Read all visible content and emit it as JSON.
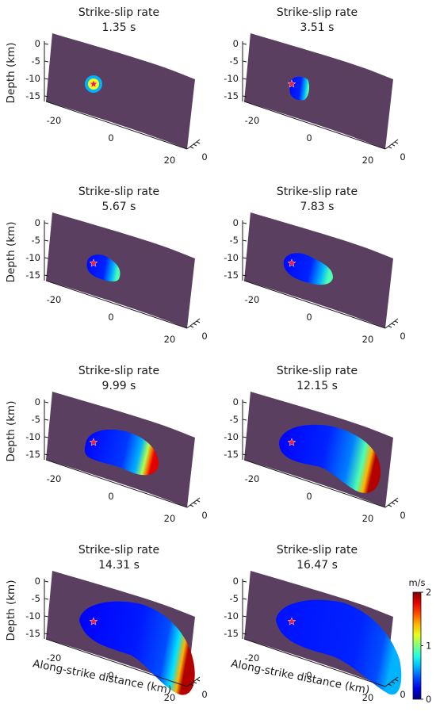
{
  "figure": {
    "units_label": "m/s"
  },
  "chart_data": {
    "type": "heatmap",
    "variable": "Strike-slip rate",
    "colorbar": {
      "label": "m/s",
      "range": [
        0,
        2
      ],
      "ticks": [
        0,
        1,
        2
      ],
      "colormap": "jet"
    },
    "panels": [
      {
        "title": "Strike-slip rate",
        "time": "1.35 s"
      },
      {
        "title": "Strike-slip rate",
        "time": "3.51 s"
      },
      {
        "title": "Strike-slip rate",
        "time": "5.67 s"
      },
      {
        "title": "Strike-slip rate",
        "time": "7.83 s"
      },
      {
        "title": "Strike-slip rate",
        "time": "9.99 s"
      },
      {
        "title": "Strike-slip rate",
        "time": "12.15 s"
      },
      {
        "title": "Strike-slip rate",
        "time": "14.31 s"
      },
      {
        "title": "Strike-slip rate",
        "time": "16.47 s"
      }
    ],
    "depth_axis": {
      "label": "Depth (km)",
      "ticks": [
        "0",
        "-5",
        "-10",
        "-15"
      ]
    },
    "strike_axis": {
      "label": "Along-strike distance (km)",
      "ticks": [
        "-20",
        "0",
        "20"
      ]
    },
    "normal_axis": {
      "ticks": [
        "0"
      ]
    },
    "hypocenter": {
      "along_strike_km": -7,
      "depth_km": -12,
      "marker": "red star"
    },
    "colors": {
      "background_slip": "#5b3f60",
      "hypocenter": "#e8203a"
    }
  }
}
